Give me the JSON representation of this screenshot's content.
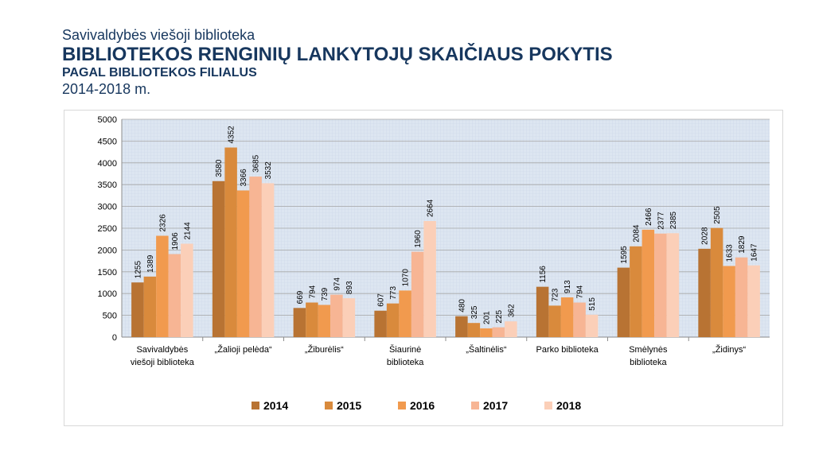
{
  "header": {
    "subtitle": "Savivaldybės viešoji biblioteka",
    "title": "BIBLIOTEKOS RENGINIŲ LANKYTOJŲ SKAIČIAUS POKYTIS",
    "title2": "PAGAL BIBLIOTEKOS FILIALUS",
    "years": "2014-2018 m."
  },
  "chart_data": {
    "type": "bar",
    "categories": [
      [
        "Savivaldybės",
        "viešoji biblioteka"
      ],
      [
        "„Žalioji pelėda“"
      ],
      [
        "„Žiburėlis“"
      ],
      [
        "Šiaurinė",
        "biblioteka"
      ],
      [
        "„Šaltinėlis“"
      ],
      [
        "Parko biblioteka"
      ],
      [
        "Smėlynės",
        "biblioteka"
      ],
      [
        "„Židinys“"
      ]
    ],
    "series": [
      {
        "name": "2014",
        "color": "#b87333",
        "values": [
          1255,
          3580,
          669,
          607,
          480,
          1156,
          1595,
          2028
        ]
      },
      {
        "name": "2015",
        "color": "#d98a3c",
        "values": [
          1389,
          4352,
          794,
          773,
          325,
          723,
          2084,
          2505
        ]
      },
      {
        "name": "2016",
        "color": "#f19a4e",
        "values": [
          2326,
          3366,
          739,
          1070,
          201,
          913,
          2466,
          1633
        ]
      },
      {
        "name": "2017",
        "color": "#f7b594",
        "values": [
          1906,
          3685,
          974,
          1960,
          225,
          794,
          2377,
          1829
        ]
      },
      {
        "name": "2018",
        "color": "#fbcfb8",
        "values": [
          2144,
          3532,
          893,
          2664,
          362,
          515,
          2385,
          1647
        ]
      }
    ],
    "ylim": [
      0,
      5000
    ],
    "yticks": [
      0,
      500,
      1000,
      1500,
      2000,
      2500,
      3000,
      3500,
      4000,
      4500,
      5000
    ],
    "grid": true,
    "legend_position": "bottom"
  }
}
